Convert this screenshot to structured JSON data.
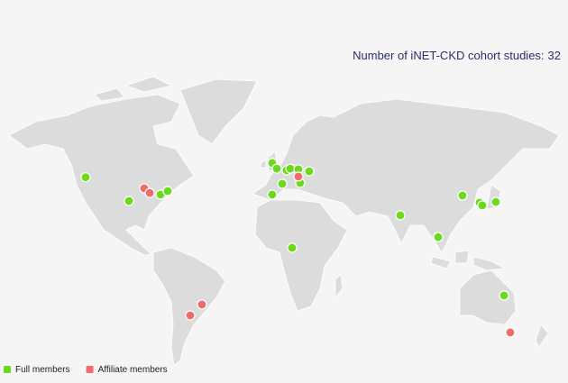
{
  "title": {
    "label": "Number of iNET-CKD cohort studies:",
    "count": 32
  },
  "legend": [
    {
      "name": "Full members",
      "color": "#6bd91c"
    },
    {
      "name": "Affiliate members",
      "color": "#f06b6b"
    }
  ],
  "markers": [
    {
      "group": 0,
      "lon": -118.2,
      "lat": 46.7
    },
    {
      "group": 0,
      "lon": -90.9,
      "lat": 35.5
    },
    {
      "group": 0,
      "lon": -71.0,
      "lat": 38.7
    },
    {
      "group": 0,
      "lon": -66.5,
      "lat": 40.4
    },
    {
      "group": 0,
      "lon": -0.6,
      "lat": 52.5
    },
    {
      "group": 0,
      "lon": 2.3,
      "lat": 50.3
    },
    {
      "group": 0,
      "lon": 8.5,
      "lat": 49.6
    },
    {
      "group": 0,
      "lon": 10.8,
      "lat": 50.3
    },
    {
      "group": 0,
      "lon": 15.9,
      "lat": 50.0
    },
    {
      "group": 0,
      "lon": 22.7,
      "lat": 49.2
    },
    {
      "group": 0,
      "lon": 5.7,
      "lat": 43.8
    },
    {
      "group": 0,
      "lon": 17.0,
      "lat": 44.2
    },
    {
      "group": 0,
      "lon": -0.6,
      "lat": 38.7
    },
    {
      "group": 0,
      "lon": 11.9,
      "lat": 8.5
    },
    {
      "group": 0,
      "lon": 80.1,
      "lat": 27.8
    },
    {
      "group": 0,
      "lon": 104.0,
      "lat": 15.1
    },
    {
      "group": 0,
      "lon": 119.3,
      "lat": 38.2
    },
    {
      "group": 0,
      "lon": 130.1,
      "lat": 34.6
    },
    {
      "group": 0,
      "lon": 131.8,
      "lat": 33.2
    },
    {
      "group": 0,
      "lon": 140.3,
      "lat": 35.0
    },
    {
      "group": 0,
      "lon": 145.5,
      "lat": -21.0
    },
    {
      "group": 1,
      "lon": -81.3,
      "lat": 41.7
    },
    {
      "group": 1,
      "lon": -77.8,
      "lat": 39.5
    },
    {
      "group": 1,
      "lon": 15.9,
      "lat": 47.0
    },
    {
      "group": 1,
      "lon": -44.9,
      "lat": -26.2
    },
    {
      "group": 1,
      "lon": -52.3,
      "lat": -32.2
    },
    {
      "group": 1,
      "lon": 149.4,
      "lat": -40.8
    }
  ]
}
